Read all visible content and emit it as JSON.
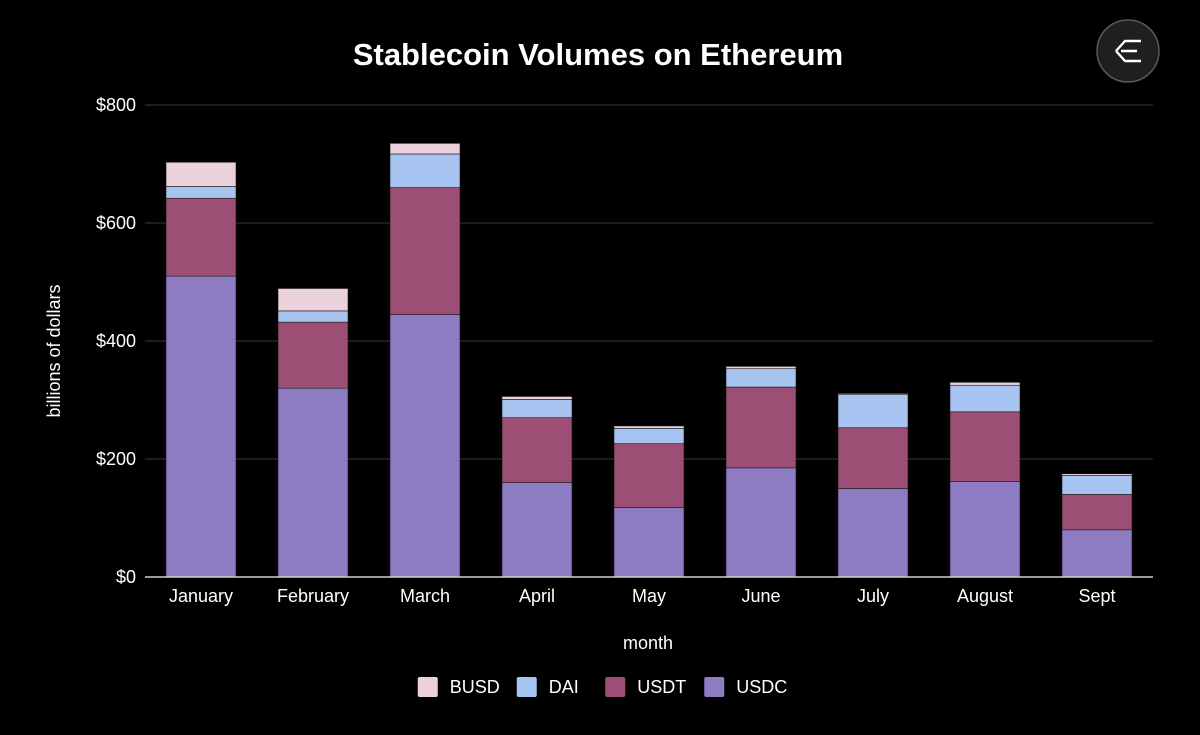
{
  "logo": {
    "name": "exponential-logo"
  },
  "chart_data": {
    "type": "bar",
    "stacked": true,
    "title": "Stablecoin Volumes on Ethereum",
    "xlabel": "month",
    "ylabel": "billions of dollars",
    "ylim": [
      0,
      800
    ],
    "yticks": [
      0,
      200,
      400,
      600,
      800
    ],
    "ytick_labels": [
      "$0",
      "$200",
      "$400",
      "$600",
      "$800"
    ],
    "grid": true,
    "legend_position": "bottom-center",
    "categories": [
      "January",
      "February",
      "March",
      "April",
      "May",
      "June",
      "July",
      "August",
      "Sept"
    ],
    "series": [
      {
        "name": "USDC",
        "color": "#8e7cc3",
        "values": [
          510,
          320,
          445,
          160,
          118,
          185,
          150,
          162,
          80
        ]
      },
      {
        "name": "USDT",
        "color": "#9c4e74",
        "values": [
          132,
          112,
          215,
          110,
          108,
          137,
          103,
          118,
          60
        ]
      },
      {
        "name": "DAI",
        "color": "#a8c4f0",
        "values": [
          20,
          19,
          57,
          31,
          26,
          31,
          56,
          45,
          32
        ]
      },
      {
        "name": "BUSD",
        "color": "#ead1dc",
        "values": [
          41,
          38,
          18,
          5,
          4,
          4,
          2,
          5,
          3
        ]
      }
    ],
    "legend_order": [
      "BUSD",
      "DAI",
      "USDT",
      "USDC"
    ]
  }
}
